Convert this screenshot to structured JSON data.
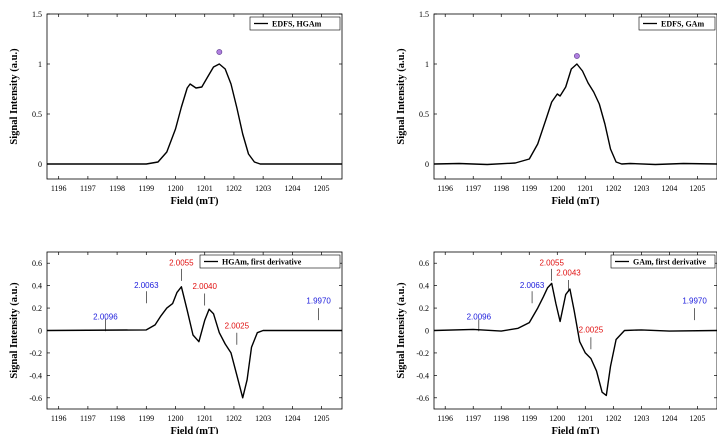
{
  "colors": {
    "line": "#000000",
    "blue": "#1a1adc",
    "red": "#e01010",
    "marker": "#b07fe0"
  },
  "chart_data": [
    {
      "type": "line",
      "xlabel": "Field (mT)",
      "ylabel": "Signal Intensity (a.u.)",
      "xlim": [
        1195.6,
        1205.7
      ],
      "ylim": [
        -0.15,
        1.5
      ],
      "xticks": [
        "1196",
        "1197",
        "1198",
        "1199",
        "1200",
        "1201",
        "1202",
        "1203",
        "1204",
        "1205"
      ],
      "yticks": [
        "0",
        "0.5",
        "1",
        "1.5"
      ],
      "ytickvals": [
        0,
        0.5,
        1,
        1.5
      ],
      "series": [
        {
          "name": "EDFS, HGAm",
          "x": [
            1195.6,
            1199.0,
            1199.4,
            1199.7,
            1200.0,
            1200.2,
            1200.4,
            1200.5,
            1200.7,
            1200.9,
            1201.1,
            1201.3,
            1201.5,
            1201.7,
            1201.9,
            1202.1,
            1202.3,
            1202.5,
            1202.7,
            1202.9,
            1203.2,
            1205.7
          ],
          "y": [
            0,
            0,
            0.02,
            0.12,
            0.35,
            0.57,
            0.76,
            0.8,
            0.76,
            0.77,
            0.87,
            0.97,
            1.0,
            0.95,
            0.8,
            0.56,
            0.3,
            0.1,
            0.02,
            0,
            0,
            0
          ]
        }
      ],
      "legend": "top-right",
      "marker": {
        "x": 1201.5,
        "y": 1.12
      },
      "annotations": []
    },
    {
      "type": "line",
      "xlabel": "Field (mT)",
      "ylabel": "Signal Intensity (a.u.)",
      "xlim": [
        1195.6,
        1205.7
      ],
      "ylim": [
        -0.15,
        1.5
      ],
      "xticks": [
        "1196",
        "1197",
        "1198",
        "1199",
        "1200",
        "1201",
        "1202",
        "1203",
        "1204",
        "1205"
      ],
      "yticks": [
        "0",
        "0.5",
        "1",
        "1.5"
      ],
      "ytickvals": [
        0,
        0.5,
        1,
        1.5
      ],
      "series": [
        {
          "name": "EDFS, GAm",
          "x": [
            1195.6,
            1196.5,
            1197.5,
            1198.5,
            1199.0,
            1199.3,
            1199.6,
            1199.8,
            1200.0,
            1200.1,
            1200.3,
            1200.5,
            1200.7,
            1200.9,
            1201.1,
            1201.3,
            1201.5,
            1201.7,
            1201.9,
            1202.1,
            1202.3,
            1202.6,
            1203.5,
            1204.5,
            1205.7
          ],
          "y": [
            0,
            0.005,
            -0.005,
            0.01,
            0.05,
            0.2,
            0.45,
            0.62,
            0.7,
            0.68,
            0.77,
            0.95,
            1.0,
            0.93,
            0.81,
            0.72,
            0.6,
            0.4,
            0.15,
            0.02,
            0,
            0.005,
            -0.005,
            0.005,
            0
          ]
        }
      ],
      "legend": "top-right",
      "marker": {
        "x": 1200.7,
        "y": 1.08
      },
      "annotations": []
    },
    {
      "type": "line",
      "xlabel": "Field (mT)",
      "ylabel": "Signal Intensity (a.u.)",
      "xlim": [
        1195.6,
        1205.7
      ],
      "ylim": [
        -0.7,
        0.7
      ],
      "xticks": [
        "1196",
        "1197",
        "1198",
        "1199",
        "1200",
        "1201",
        "1202",
        "1203",
        "1204",
        "1205"
      ],
      "yticks": [
        "0.6",
        "0.4",
        "0.2",
        "0",
        "-0.2",
        "-0.4",
        "-0.6"
      ],
      "ytickvals": [
        0.6,
        0.4,
        0.2,
        0,
        -0.2,
        -0.4,
        -0.6
      ],
      "series": [
        {
          "name": "HGAm, first derivative",
          "x": [
            1195.6,
            1199.0,
            1199.3,
            1199.5,
            1199.7,
            1199.9,
            1200.05,
            1200.2,
            1200.4,
            1200.6,
            1200.8,
            1201.0,
            1201.15,
            1201.3,
            1201.5,
            1201.7,
            1201.9,
            1202.1,
            1202.3,
            1202.45,
            1202.6,
            1202.8,
            1203.0,
            1205.7
          ],
          "y": [
            0,
            0.005,
            0.05,
            0.13,
            0.2,
            0.24,
            0.34,
            0.39,
            0.18,
            -0.04,
            -0.1,
            0.09,
            0.19,
            0.15,
            -0.02,
            -0.12,
            -0.2,
            -0.4,
            -0.6,
            -0.44,
            -0.15,
            -0.02,
            0,
            0
          ]
        }
      ],
      "legend": "top-right",
      "annotations": [
        {
          "text": "2.0096",
          "color": "blue",
          "x": 1197.6,
          "y": 0.1,
          "ly": 0.1
        },
        {
          "text": "2.0063",
          "color": "blue",
          "x": 1199.0,
          "y": 0.38,
          "ly": 0.35
        },
        {
          "text": "2.0055",
          "color": "red",
          "x": 1200.2,
          "y": 0.58,
          "ly": 0.55
        },
        {
          "text": "2.0040",
          "color": "red",
          "x": 1201.0,
          "y": 0.37,
          "ly": 0.33
        },
        {
          "text": "2.0025",
          "color": "red",
          "x": 1202.1,
          "y": 0.02,
          "ly": -0.02
        },
        {
          "text": "1.9970",
          "color": "blue",
          "x": 1204.9,
          "y": 0.24,
          "ly": 0.2
        }
      ]
    },
    {
      "type": "line",
      "xlabel": "Field (mT)",
      "ylabel": "Signal Intensity (a.u.)",
      "xlim": [
        1195.6,
        1205.7
      ],
      "ylim": [
        -0.7,
        0.7
      ],
      "xticks": [
        "1196",
        "1197",
        "1198",
        "1199",
        "1200",
        "1201",
        "1202",
        "1203",
        "1204",
        "1205"
      ],
      "yticks": [
        "0.6",
        "0.4",
        "0.2",
        "0",
        "-0.2",
        "-0.4",
        "-0.6"
      ],
      "ytickvals": [
        0.6,
        0.4,
        0.2,
        0,
        -0.2,
        -0.4,
        -0.6
      ],
      "series": [
        {
          "name": "GAm, first derivative",
          "x": [
            1195.6,
            1197.0,
            1198.0,
            1198.6,
            1199.0,
            1199.3,
            1199.5,
            1199.65,
            1199.8,
            1199.95,
            1200.1,
            1200.3,
            1200.45,
            1200.6,
            1200.8,
            1201.0,
            1201.2,
            1201.4,
            1201.6,
            1201.75,
            1201.9,
            1202.1,
            1202.4,
            1203.0,
            1204.0,
            1205.7
          ],
          "y": [
            0,
            0.01,
            -0.005,
            0.02,
            0.07,
            0.2,
            0.3,
            0.38,
            0.42,
            0.24,
            0.08,
            0.32,
            0.37,
            0.18,
            -0.1,
            -0.2,
            -0.25,
            -0.36,
            -0.55,
            -0.58,
            -0.32,
            -0.08,
            0,
            0.005,
            -0.005,
            0
          ]
        }
      ],
      "legend": "top-right",
      "annotations": [
        {
          "text": "2.0096",
          "color": "blue",
          "x": 1197.2,
          "y": 0.1,
          "ly": 0.1
        },
        {
          "text": "2.0063",
          "color": "blue",
          "x": 1199.1,
          "y": 0.38,
          "ly": 0.35
        },
        {
          "text": "2.0055",
          "color": "red",
          "x": 1199.8,
          "y": 0.58,
          "ly": 0.55
        },
        {
          "text": "2.0043",
          "color": "red",
          "x": 1200.4,
          "y": 0.49,
          "ly": 0.45
        },
        {
          "text": "2.0025",
          "color": "red",
          "x": 1201.2,
          "y": -0.02,
          "ly": -0.06
        },
        {
          "text": "1.9970",
          "color": "blue",
          "x": 1204.9,
          "y": 0.24,
          "ly": 0.2
        }
      ]
    }
  ]
}
